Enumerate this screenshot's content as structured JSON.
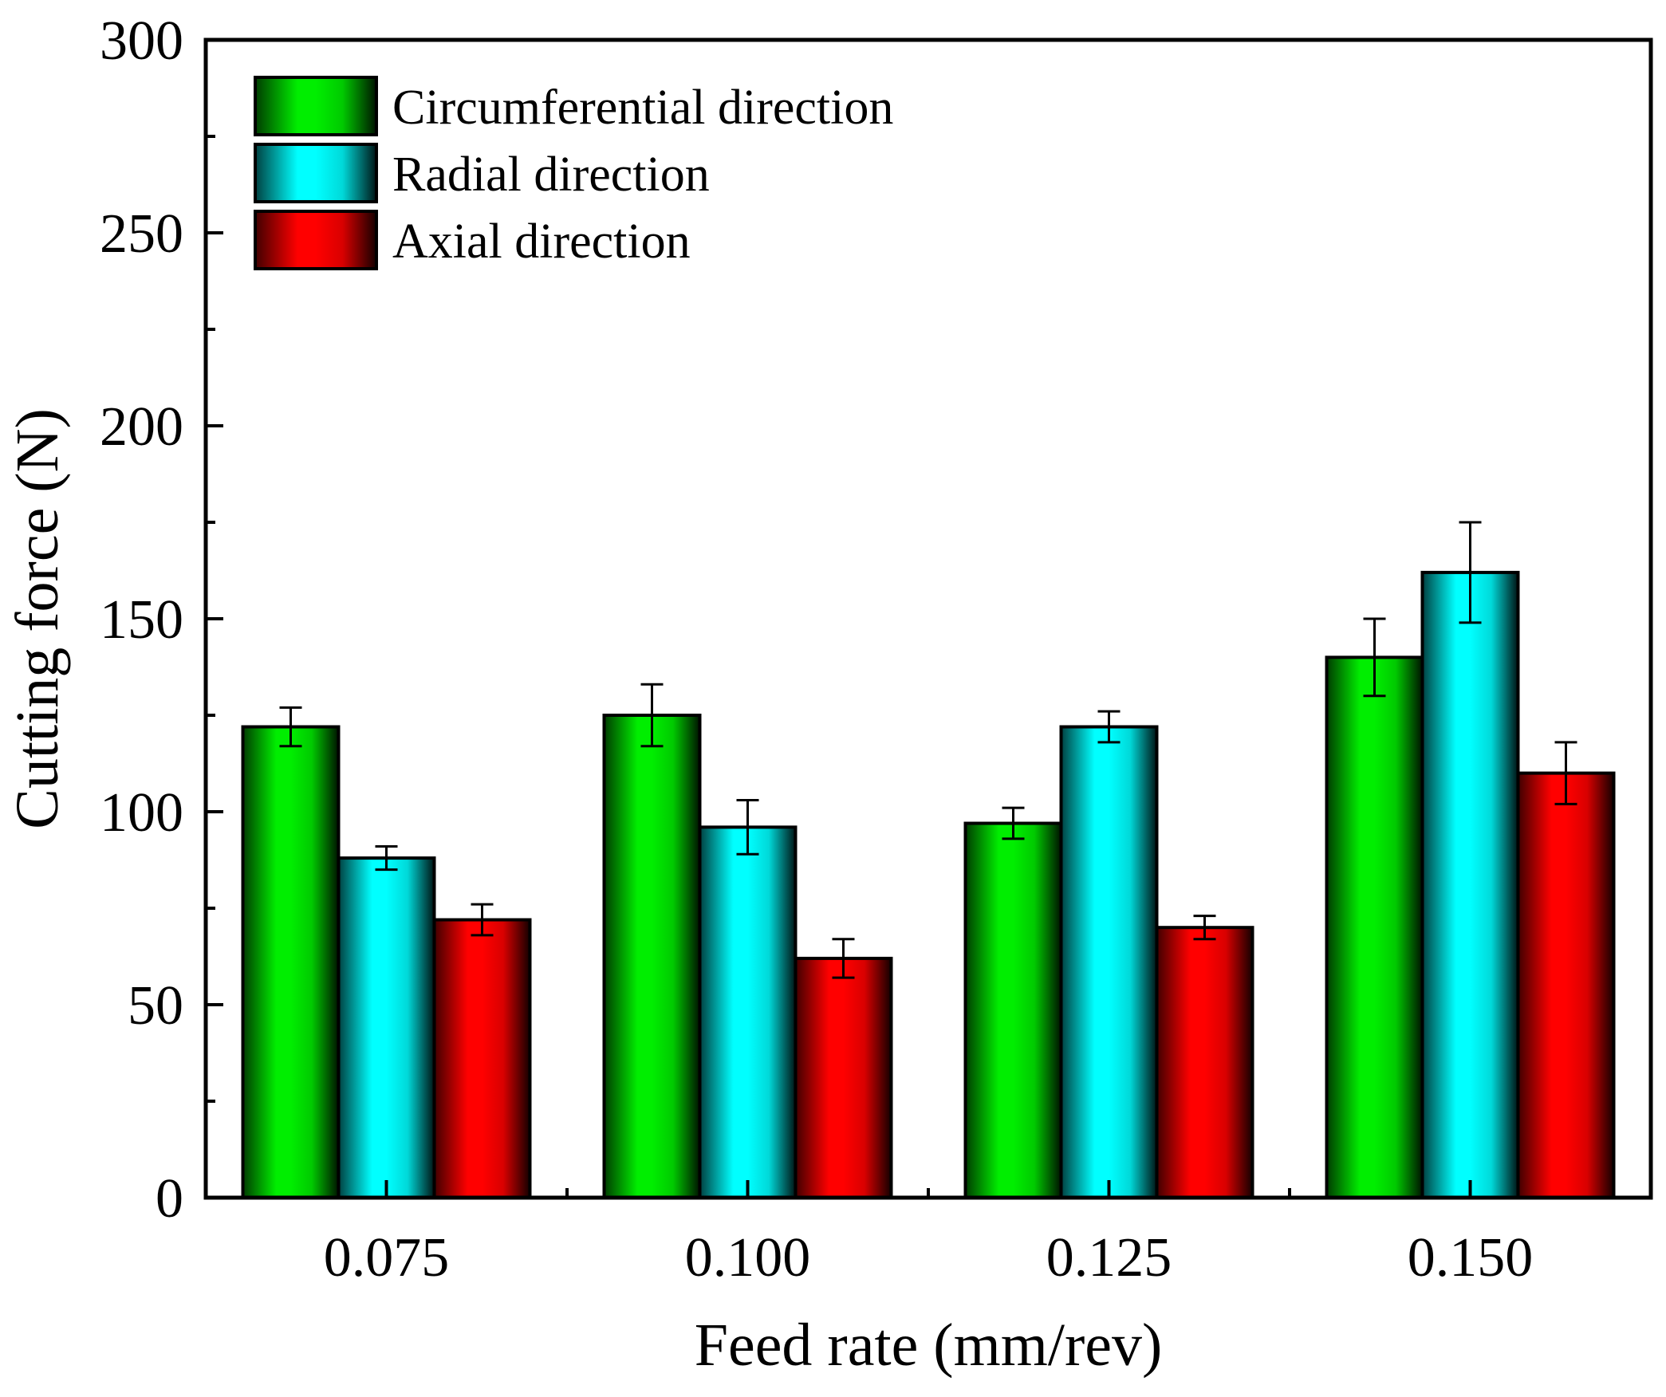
{
  "chart_data": {
    "type": "bar",
    "title": "",
    "xlabel": "Feed rate (mm/rev)",
    "ylabel": "Cutting force (N)",
    "categories": [
      "0.075",
      "0.100",
      "0.125",
      "0.150"
    ],
    "ylim": [
      0,
      300
    ],
    "yticks": [
      0,
      50,
      100,
      150,
      200,
      250,
      300
    ],
    "ytick_labels": [
      "0",
      "50",
      "100",
      "150",
      "200",
      "250",
      "300"
    ],
    "legend_position": "top-left",
    "grid": false,
    "series": [
      {
        "name": "Circumferential direction",
        "color": "#00ee00",
        "values": [
          122,
          125,
          97,
          140
        ],
        "errors": [
          5,
          8,
          4,
          10
        ]
      },
      {
        "name": "Radial direction",
        "color": "#00ffff",
        "values": [
          88,
          96,
          122,
          162
        ],
        "errors": [
          3,
          7,
          4,
          13
        ]
      },
      {
        "name": "Axial direction",
        "color": "#ff0000",
        "values": [
          72,
          62,
          70,
          110
        ],
        "errors": [
          4,
          5,
          3,
          8
        ]
      }
    ]
  }
}
